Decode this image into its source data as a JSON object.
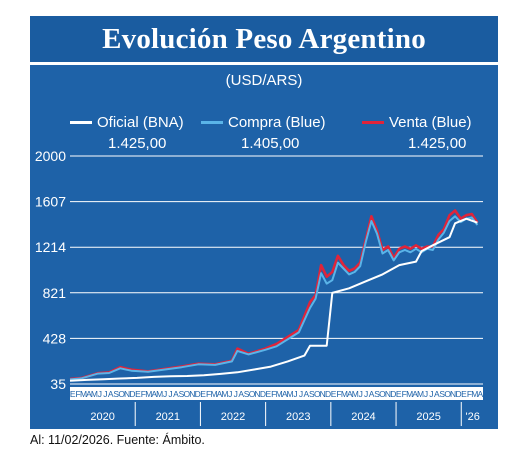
{
  "title": "Evolución Peso Argentino",
  "subtitle": "(USD/ARS)",
  "footer": "Al: 11/02/2026. Fuente: Ámbito.",
  "colors": {
    "background": "#1e62a8",
    "oficial": "#ffffff",
    "compra": "#5ab4e8",
    "venta": "#e0243a",
    "grid": "#ffffff"
  },
  "legend": [
    {
      "label": "Oficial (BNA)",
      "value": "1.425,00",
      "color": "#ffffff"
    },
    {
      "label": "Compra (Blue)",
      "value": "1.405,00",
      "color": "#5ab4e8"
    },
    {
      "label": "Venta (Blue)",
      "value": "1.425,00",
      "color": "#e0243a"
    }
  ],
  "chart_data": {
    "type": "line",
    "y_ticks": [
      "35",
      "428",
      "821",
      "1214",
      "1607",
      "2000"
    ],
    "ylim": [
      35,
      2000
    ],
    "grid": true,
    "x_start": "2020-01",
    "month_labels": [
      "E",
      "F",
      "M",
      "A",
      "M",
      "J",
      "J",
      "A",
      "S",
      "O",
      "N",
      "D"
    ],
    "years": [
      "2020",
      "2021",
      "2022",
      "2023",
      "2024",
      "2025",
      "'26"
    ],
    "series": [
      {
        "name": "Oficial (BNA)",
        "x": [
          "2020-01",
          "2020-04",
          "2020-07",
          "2020-10",
          "2021-01",
          "2021-04",
          "2021-07",
          "2021-10",
          "2022-01",
          "2022-04",
          "2022-07",
          "2022-10",
          "2023-01",
          "2023-04",
          "2023-07",
          "2023-08",
          "2023-09",
          "2023-11",
          "2023-12",
          "2024-03",
          "2024-06",
          "2024-09",
          "2024-12",
          "2025-03",
          "2025-04",
          "2025-06",
          "2025-09",
          "2025-10",
          "2025-12",
          "2026-02"
        ],
        "y": [
          63,
          70,
          76,
          82,
          88,
          96,
          101,
          104,
          110,
          122,
          136,
          160,
          185,
          230,
          280,
          365,
          365,
          365,
          820,
          860,
          920,
          980,
          1060,
          1090,
          1180,
          1230,
          1300,
          1420,
          1460,
          1425
        ]
      },
      {
        "name": "Compra (Blue)",
        "x": [
          "2020-01",
          "2020-03",
          "2020-06",
          "2020-08",
          "2020-10",
          "2020-12",
          "2021-03",
          "2021-06",
          "2021-09",
          "2021-12",
          "2022-03",
          "2022-06",
          "2022-07",
          "2022-09",
          "2022-12",
          "2023-02",
          "2023-04",
          "2023-06",
          "2023-08",
          "2023-09",
          "2023-10",
          "2023-11",
          "2023-12",
          "2024-01",
          "2024-02",
          "2024-03",
          "2024-04",
          "2024-05",
          "2024-06",
          "2024-07",
          "2024-08",
          "2024-09",
          "2024-10",
          "2024-11",
          "2024-12",
          "2025-01",
          "2025-02",
          "2025-03",
          "2025-04",
          "2025-05",
          "2025-06",
          "2025-07",
          "2025-08",
          "2025-09",
          "2025-10",
          "2025-11",
          "2025-12",
          "2026-01",
          "2026-02"
        ],
        "y": [
          75,
          83,
          125,
          130,
          170,
          150,
          140,
          160,
          180,
          205,
          200,
          230,
          320,
          290,
          330,
          360,
          420,
          480,
          690,
          770,
          990,
          900,
          930,
          1080,
          1030,
          980,
          1000,
          1050,
          1260,
          1440,
          1330,
          1160,
          1190,
          1100,
          1170,
          1190,
          1170,
          1200,
          1170,
          1200,
          1190,
          1280,
          1340,
          1440,
          1480,
          1430,
          1460,
          1470,
          1405
        ]
      },
      {
        "name": "Venta (Blue)",
        "x": [
          "2020-01",
          "2020-03",
          "2020-06",
          "2020-08",
          "2020-10",
          "2020-12",
          "2021-03",
          "2021-06",
          "2021-09",
          "2021-12",
          "2022-03",
          "2022-06",
          "2022-07",
          "2022-09",
          "2022-12",
          "2023-02",
          "2023-04",
          "2023-06",
          "2023-08",
          "2023-09",
          "2023-10",
          "2023-11",
          "2023-12",
          "2024-01",
          "2024-02",
          "2024-03",
          "2024-04",
          "2024-05",
          "2024-06",
          "2024-07",
          "2024-08",
          "2024-09",
          "2024-10",
          "2024-11",
          "2024-12",
          "2025-01",
          "2025-02",
          "2025-03",
          "2025-04",
          "2025-05",
          "2025-06",
          "2025-07",
          "2025-08",
          "2025-09",
          "2025-10",
          "2025-11",
          "2025-12",
          "2026-01",
          "2026-02"
        ],
        "y": [
          78,
          86,
          128,
          135,
          180,
          158,
          144,
          165,
          186,
          210,
          205,
          235,
          340,
          295,
          340,
          380,
          440,
          500,
          740,
          800,
          1060,
          960,
          1000,
          1140,
          1060,
          1010,
          1030,
          1080,
          1280,
          1480,
          1360,
          1190,
          1220,
          1120,
          1200,
          1220,
          1200,
          1230,
          1200,
          1220,
          1220,
          1320,
          1370,
          1490,
          1530,
          1460,
          1490,
          1500,
          1425
        ]
      }
    ]
  }
}
